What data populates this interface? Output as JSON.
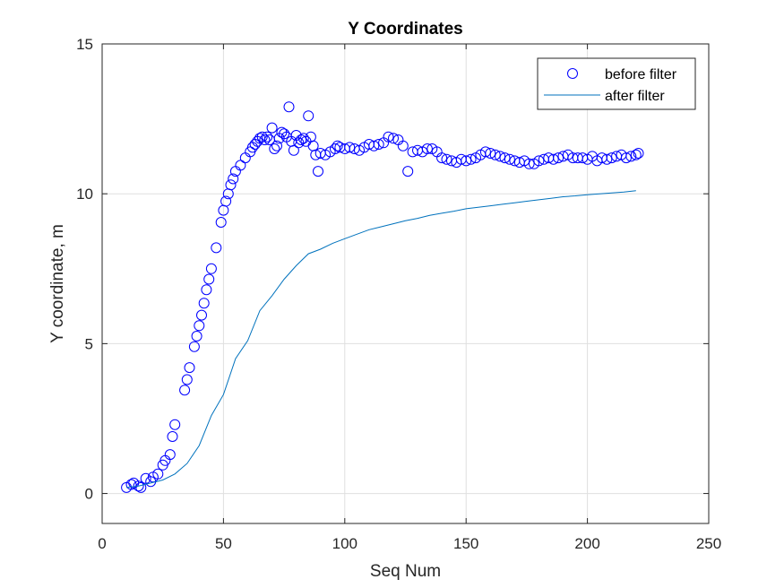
{
  "chart_data": {
    "type": "scatter",
    "title": "Y Coordinates",
    "xlabel": "Seq Num",
    "ylabel": "Y coordinate, m",
    "xlim": [
      0,
      250
    ],
    "ylim": [
      -1,
      15
    ],
    "xticks": [
      0,
      50,
      100,
      150,
      200,
      250
    ],
    "yticks": [
      0,
      5,
      10,
      15
    ],
    "grid": true,
    "legend_position": "top-right",
    "series": [
      {
        "name": "before filter",
        "marker": "circle",
        "color": "#0000ff",
        "x": [
          10,
          12,
          13,
          15,
          16,
          18,
          20,
          21,
          23,
          25,
          26,
          28,
          29,
          30,
          34,
          35,
          36,
          38,
          39,
          40,
          41,
          42,
          43,
          44,
          45,
          47,
          49,
          50,
          51,
          52,
          53,
          54,
          55,
          57,
          59,
          61,
          62,
          63,
          64,
          65,
          66,
          67,
          68,
          69,
          70,
          71,
          72,
          73,
          74,
          75,
          76,
          77,
          78,
          79,
          80,
          81,
          82,
          83,
          84,
          85,
          86,
          87,
          88,
          89,
          90,
          92,
          94,
          96,
          97,
          98,
          100,
          102,
          104,
          106,
          108,
          110,
          112,
          114,
          116,
          118,
          120,
          122,
          124,
          126,
          128,
          130,
          132,
          134,
          136,
          138,
          140,
          142,
          144,
          146,
          148,
          150,
          152,
          154,
          156,
          158,
          160,
          162,
          164,
          166,
          168,
          170,
          172,
          174,
          176,
          178,
          180,
          182,
          184,
          186,
          188,
          190,
          192,
          194,
          196,
          198,
          200,
          202,
          204,
          206,
          208,
          210,
          212,
          214,
          216,
          218,
          220,
          221
        ],
        "y": [
          0.2,
          0.3,
          0.35,
          0.25,
          0.2,
          0.5,
          0.4,
          0.55,
          0.65,
          0.95,
          1.1,
          1.3,
          1.9,
          2.3,
          3.45,
          3.8,
          4.2,
          4.9,
          5.25,
          5.6,
          5.95,
          6.35,
          6.8,
          7.15,
          7.5,
          8.2,
          9.05,
          9.45,
          9.75,
          10.0,
          10.3,
          10.5,
          10.75,
          10.95,
          11.2,
          11.4,
          11.55,
          11.65,
          11.75,
          11.85,
          11.9,
          11.8,
          11.9,
          11.8,
          12.2,
          11.5,
          11.6,
          11.85,
          12.05,
          12.0,
          11.9,
          12.9,
          11.75,
          11.45,
          11.95,
          11.7,
          11.8,
          11.85,
          11.75,
          12.6,
          11.9,
          11.6,
          11.3,
          10.75,
          11.35,
          11.3,
          11.4,
          11.5,
          11.6,
          11.55,
          11.5,
          11.55,
          11.5,
          11.45,
          11.55,
          11.65,
          11.6,
          11.65,
          11.7,
          11.9,
          11.85,
          11.8,
          11.6,
          10.75,
          11.4,
          11.45,
          11.4,
          11.5,
          11.5,
          11.4,
          11.2,
          11.15,
          11.1,
          11.05,
          11.15,
          11.1,
          11.15,
          11.2,
          11.3,
          11.4,
          11.35,
          11.3,
          11.25,
          11.2,
          11.15,
          11.1,
          11.05,
          11.1,
          11.0,
          11.0,
          11.1,
          11.15,
          11.2,
          11.15,
          11.2,
          11.25,
          11.3,
          11.2,
          11.2,
          11.2,
          11.15,
          11.25,
          11.1,
          11.2,
          11.15,
          11.2,
          11.25,
          11.3,
          11.2,
          11.25,
          11.3,
          11.35
        ]
      },
      {
        "name": "after filter",
        "marker": "line",
        "color": "#0072bd",
        "x": [
          10,
          15,
          20,
          25,
          30,
          35,
          40,
          45,
          50,
          55,
          60,
          65,
          70,
          75,
          80,
          85,
          90,
          95,
          100,
          105,
          110,
          115,
          120,
          125,
          130,
          135,
          140,
          145,
          150,
          155,
          160,
          165,
          170,
          175,
          180,
          185,
          190,
          195,
          200,
          205,
          210,
          215,
          220
        ],
        "y": [
          0.2,
          0.25,
          0.35,
          0.45,
          0.65,
          1.0,
          1.6,
          2.6,
          3.3,
          4.5,
          5.1,
          6.1,
          6.6,
          7.15,
          7.6,
          8.0,
          8.15,
          8.35,
          8.5,
          8.65,
          8.8,
          8.9,
          9.0,
          9.1,
          9.18,
          9.28,
          9.35,
          9.42,
          9.5,
          9.55,
          9.6,
          9.65,
          9.7,
          9.75,
          9.8,
          9.85,
          9.9,
          9.93,
          9.97,
          10.0,
          10.03,
          10.06,
          10.1
        ]
      }
    ]
  }
}
